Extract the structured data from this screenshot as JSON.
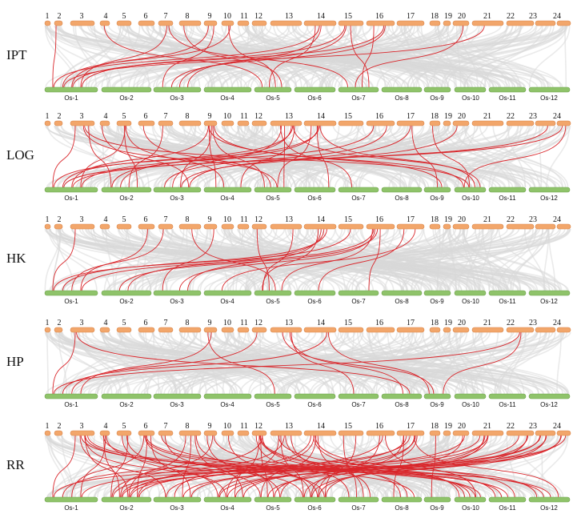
{
  "colors": {
    "top_chromosome": "#f2a66b",
    "top_chromosome_stroke": "#d9864a",
    "bottom_chromosome": "#8fc36a",
    "bottom_chromosome_stroke": "#6fa34d",
    "background_links": "#d8d8d8",
    "highlight_links": "#d9262b"
  },
  "top_chromosome_labels": [
    "1",
    "2",
    "3",
    "4",
    "5",
    "6",
    "7",
    "8",
    "9",
    "10",
    "11",
    "12",
    "13",
    "14",
    "15",
    "16",
    "17",
    "18",
    "19",
    "20",
    "21",
    "22",
    "23",
    "24"
  ],
  "bottom_chromosome_labels": [
    "Os-1",
    "Os-2",
    "Os-3",
    "Os-4",
    "Os-5",
    "Os-6",
    "Os-7",
    "Os-8",
    "Os-9",
    "Os-10",
    "Os-11",
    "Os-12"
  ],
  "panels": [
    {
      "name": "IPT",
      "links": [
        [
          2,
          1
        ],
        [
          7,
          1
        ],
        [
          9,
          1
        ],
        [
          10,
          1
        ],
        [
          14,
          1
        ],
        [
          15,
          1
        ],
        [
          16,
          1
        ],
        [
          21,
          1
        ],
        [
          9,
          3
        ],
        [
          14,
          3
        ],
        [
          15,
          3
        ],
        [
          16,
          3
        ],
        [
          4,
          5
        ],
        [
          8,
          5
        ],
        [
          10,
          5
        ],
        [
          14,
          5
        ],
        [
          7,
          7
        ],
        [
          15,
          7
        ],
        [
          16,
          7
        ],
        [
          20,
          7
        ]
      ]
    },
    {
      "name": "LOG",
      "links": [
        [
          3,
          1
        ],
        [
          5,
          1
        ],
        [
          9,
          1
        ],
        [
          13,
          1
        ],
        [
          14,
          1
        ],
        [
          16,
          1
        ],
        [
          23,
          1
        ],
        [
          24,
          1
        ],
        [
          3,
          2
        ],
        [
          5,
          2
        ],
        [
          7,
          2
        ],
        [
          13,
          2
        ],
        [
          14,
          2
        ],
        [
          4,
          3
        ],
        [
          9,
          3
        ],
        [
          13,
          3
        ],
        [
          16,
          3
        ],
        [
          17,
          3
        ],
        [
          20,
          3
        ],
        [
          5,
          4
        ],
        [
          9,
          4
        ],
        [
          13,
          4
        ],
        [
          3,
          5
        ],
        [
          6,
          5
        ],
        [
          9,
          5
        ],
        [
          13,
          5
        ],
        [
          14,
          5
        ],
        [
          3,
          10
        ],
        [
          9,
          10
        ],
        [
          13,
          10
        ],
        [
          14,
          10
        ],
        [
          18,
          10
        ],
        [
          24,
          10
        ],
        [
          14,
          6
        ],
        [
          9,
          9
        ],
        [
          17,
          9
        ],
        [
          13,
          7
        ]
      ]
    },
    {
      "name": "HK",
      "links": [
        [
          3,
          1
        ],
        [
          6,
          1
        ],
        [
          7,
          1
        ],
        [
          14,
          1
        ],
        [
          15,
          1
        ],
        [
          16,
          1
        ],
        [
          14,
          2
        ],
        [
          16,
          2
        ],
        [
          9,
          3
        ],
        [
          14,
          3
        ],
        [
          16,
          3
        ],
        [
          17,
          4
        ],
        [
          14,
          5
        ],
        [
          16,
          5
        ],
        [
          8,
          5
        ],
        [
          12,
          5
        ],
        [
          13,
          5
        ],
        [
          16,
          7
        ],
        [
          17,
          6
        ]
      ]
    },
    {
      "name": "HP",
      "links": [
        [
          3,
          1
        ],
        [
          9,
          1
        ],
        [
          12,
          1
        ],
        [
          14,
          1
        ],
        [
          22,
          1
        ],
        [
          3,
          8
        ],
        [
          13,
          8
        ],
        [
          13,
          9
        ],
        [
          14,
          9
        ],
        [
          22,
          9
        ],
        [
          9,
          5
        ],
        [
          13,
          7
        ]
      ]
    },
    {
      "name": "RR",
      "links": [
        [
          3,
          1
        ],
        [
          4,
          1
        ],
        [
          6,
          1
        ],
        [
          12,
          1
        ],
        [
          17,
          1
        ],
        [
          21,
          1
        ],
        [
          3,
          2
        ],
        [
          4,
          2
        ],
        [
          5,
          2
        ],
        [
          6,
          2
        ],
        [
          8,
          2
        ],
        [
          9,
          2
        ],
        [
          13,
          2
        ],
        [
          14,
          2
        ],
        [
          16,
          2
        ],
        [
          17,
          2
        ],
        [
          20,
          2
        ],
        [
          21,
          2
        ],
        [
          23,
          2
        ],
        [
          24,
          2
        ],
        [
          3,
          3
        ],
        [
          6,
          3
        ],
        [
          8,
          3
        ],
        [
          14,
          3
        ],
        [
          17,
          3
        ],
        [
          22,
          3
        ],
        [
          23,
          3
        ],
        [
          3,
          4
        ],
        [
          5,
          4
        ],
        [
          8,
          4
        ],
        [
          12,
          4
        ],
        [
          13,
          4
        ],
        [
          17,
          4
        ],
        [
          21,
          4
        ],
        [
          22,
          4
        ],
        [
          23,
          4
        ],
        [
          24,
          4
        ],
        [
          5,
          5
        ],
        [
          7,
          5
        ],
        [
          9,
          5
        ],
        [
          12,
          5
        ],
        [
          14,
          5
        ],
        [
          17,
          5
        ],
        [
          21,
          5
        ],
        [
          24,
          5
        ],
        [
          4,
          6
        ],
        [
          6,
          6
        ],
        [
          8,
          6
        ],
        [
          10,
          6
        ],
        [
          13,
          6
        ],
        [
          15,
          6
        ],
        [
          16,
          6
        ],
        [
          17,
          6
        ],
        [
          20,
          6
        ],
        [
          21,
          6
        ],
        [
          22,
          6
        ],
        [
          23,
          6
        ],
        [
          12,
          7
        ],
        [
          13,
          7
        ],
        [
          14,
          7
        ],
        [
          15,
          7
        ],
        [
          18,
          9
        ],
        [
          4,
          8
        ],
        [
          12,
          8
        ],
        [
          13,
          8
        ],
        [
          17,
          8
        ],
        [
          3,
          10
        ],
        [
          6,
          10
        ],
        [
          9,
          10
        ],
        [
          12,
          10
        ],
        [
          14,
          10
        ],
        [
          16,
          10
        ],
        [
          3,
          11
        ],
        [
          7,
          11
        ],
        [
          12,
          11
        ],
        [
          14,
          11
        ],
        [
          3,
          12
        ],
        [
          6,
          12
        ],
        [
          13,
          12
        ],
        [
          17,
          12
        ]
      ]
    }
  ]
}
